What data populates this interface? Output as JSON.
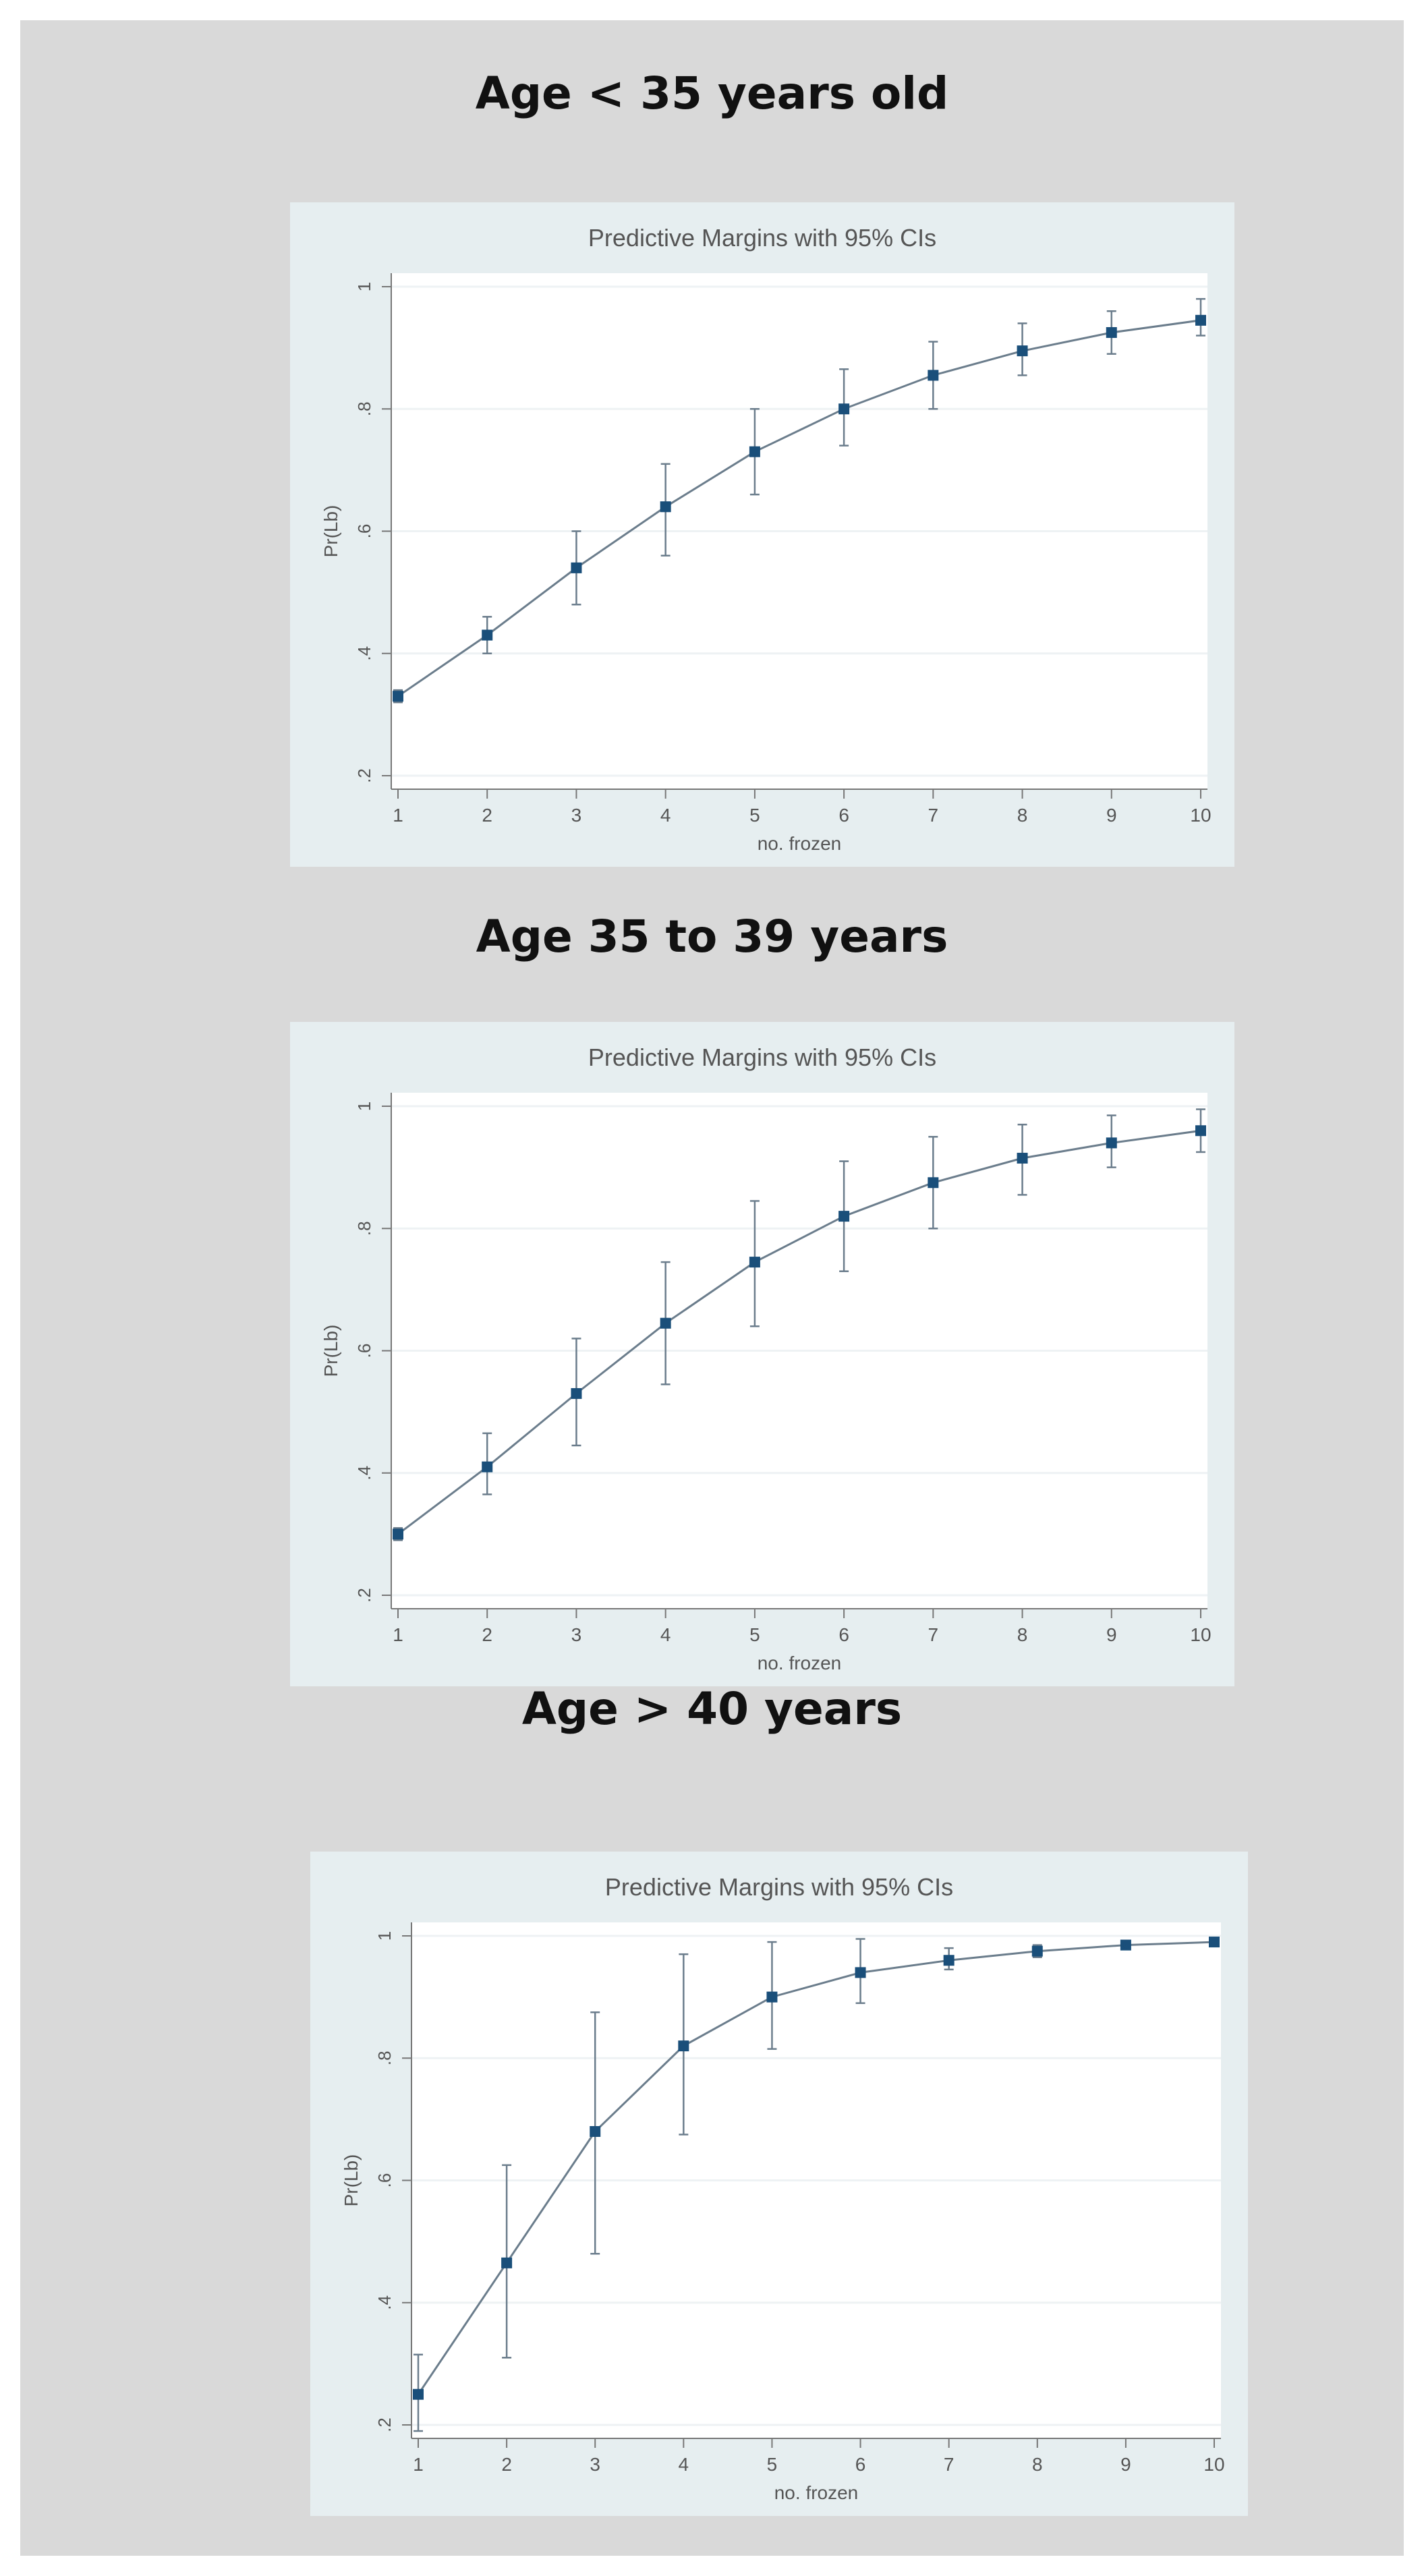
{
  "headings": [
    "Age < 35 years old",
    "Age 35 to 39 years",
    "Age > 40 years"
  ],
  "chart_data": [
    {
      "type": "line",
      "title": "Predictive Margins with 95% CIs",
      "xlabel": "no. frozen",
      "ylabel": "Pr(Lb)",
      "x": [
        1,
        2,
        3,
        4,
        5,
        6,
        7,
        8,
        9,
        10
      ],
      "xticks": [
        "1",
        "2",
        "3",
        "4",
        "5",
        "6",
        "7",
        "8",
        "9",
        "10"
      ],
      "yticks": [
        ".2",
        ".4",
        ".6",
        ".8",
        "1"
      ],
      "ylim": [
        0.2,
        1
      ],
      "y": [
        0.33,
        0.43,
        0.54,
        0.64,
        0.73,
        0.8,
        0.855,
        0.895,
        0.925,
        0.945
      ],
      "lo": [
        0.32,
        0.4,
        0.48,
        0.56,
        0.66,
        0.74,
        0.8,
        0.855,
        0.89,
        0.92
      ],
      "hi": [
        0.34,
        0.46,
        0.6,
        0.71,
        0.8,
        0.865,
        0.91,
        0.94,
        0.96,
        0.98
      ],
      "grid": true,
      "color": "#1a4f7a"
    },
    {
      "type": "line",
      "title": "Predictive Margins with 95% CIs",
      "xlabel": "no. frozen",
      "ylabel": "Pr(Lb)",
      "x": [
        1,
        2,
        3,
        4,
        5,
        6,
        7,
        8,
        9,
        10
      ],
      "xticks": [
        "1",
        "2",
        "3",
        "4",
        "5",
        "6",
        "7",
        "8",
        "9",
        "10"
      ],
      "yticks": [
        ".2",
        ".4",
        ".6",
        ".8",
        "1"
      ],
      "ylim": [
        0.2,
        1
      ],
      "y": [
        0.3,
        0.41,
        0.53,
        0.645,
        0.745,
        0.82,
        0.875,
        0.915,
        0.94,
        0.96
      ],
      "lo": [
        0.29,
        0.365,
        0.445,
        0.545,
        0.64,
        0.73,
        0.8,
        0.855,
        0.9,
        0.925
      ],
      "hi": [
        0.31,
        0.465,
        0.62,
        0.745,
        0.845,
        0.91,
        0.95,
        0.97,
        0.985,
        0.995
      ],
      "grid": true,
      "color": "#1a4f7a"
    },
    {
      "type": "line",
      "title": "Predictive Margins with 95% CIs",
      "xlabel": "no. frozen",
      "ylabel": "Pr(Lb)",
      "x": [
        1,
        2,
        3,
        4,
        5,
        6,
        7,
        8,
        9,
        10
      ],
      "xticks": [
        "1",
        "2",
        "3",
        "4",
        "5",
        "6",
        "7",
        "8",
        "9",
        "10"
      ],
      "yticks": [
        ".2",
        ".4",
        ".6",
        ".8",
        "1"
      ],
      "ylim": [
        0.2,
        1
      ],
      "y": [
        0.25,
        0.465,
        0.68,
        0.82,
        0.9,
        0.94,
        0.96,
        0.975,
        0.985,
        0.99
      ],
      "lo": [
        0.19,
        0.31,
        0.48,
        0.675,
        0.815,
        0.89,
        0.945,
        0.965,
        0.98,
        0.988
      ],
      "hi": [
        0.315,
        0.625,
        0.875,
        0.97,
        0.99,
        0.995,
        0.98,
        0.985,
        0.99,
        0.995
      ],
      "grid": true,
      "color": "#1a4f7a"
    }
  ]
}
